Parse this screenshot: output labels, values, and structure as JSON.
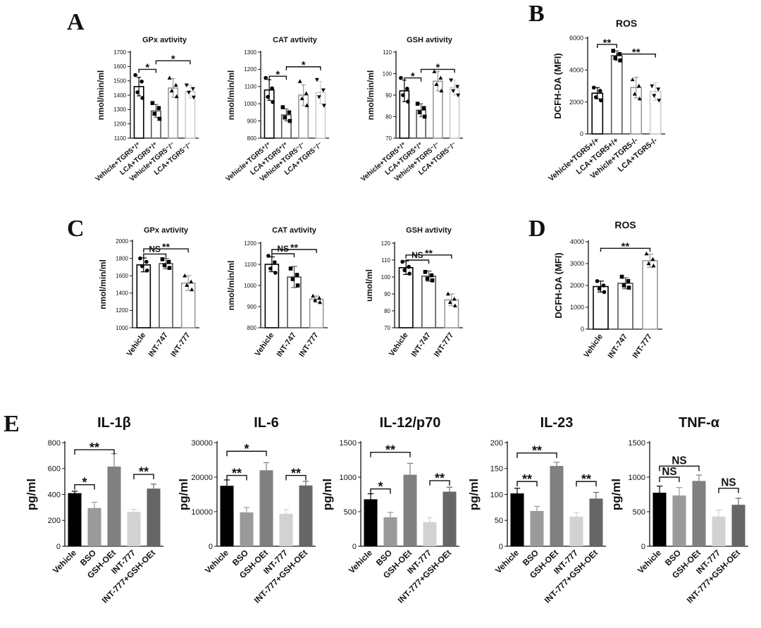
{
  "panels": [
    "A",
    "B",
    "C",
    "D",
    "E"
  ],
  "chart_data": [
    {
      "id": "A1",
      "panel": "A",
      "type": "bar",
      "title": "GPx avtivity",
      "ylabel": "nmol/min/ml",
      "ylim": [
        1100,
        1700
      ],
      "yticks": [
        1100,
        1200,
        1300,
        1400,
        1500,
        1600,
        1700
      ],
      "categories": [
        "Vehicle+TGR5⁺/⁺",
        "LCA+TGR5⁺/⁺",
        "Vehicle+TGR5⁻/⁻",
        "LCA+TGR5⁻/⁻"
      ],
      "values": [
        1460,
        1290,
        1450,
        1425
      ],
      "errors": [
        65,
        45,
        65,
        45
      ],
      "points": [
        [
          1540,
          1495,
          1420,
          1380
        ],
        [
          1345,
          1310,
          1270,
          1235
        ],
        [
          1520,
          1470,
          1430,
          1390
        ],
        [
          1470,
          1445,
          1420,
          1385
        ]
      ],
      "markers": [
        "circle",
        "square",
        "triangle",
        "diamond"
      ],
      "colors": [
        "#000000",
        "#555555",
        "#999999",
        "#cccccc"
      ],
      "significance": [
        {
          "from": 0,
          "to": 1,
          "label": "*",
          "value": 1580
        },
        {
          "from": 1,
          "to": 3,
          "label": "*",
          "value": 1640
        }
      ]
    },
    {
      "id": "A2",
      "panel": "A",
      "type": "bar",
      "title": "CAT avtivity",
      "ylabel": "nmol/min/ml",
      "ylim": [
        800,
        1300
      ],
      "yticks": [
        800,
        900,
        1000,
        1100,
        1200,
        1300
      ],
      "categories": [
        "Vehicle+TGR5⁺/⁺",
        "LCA+TGR5⁺/⁺",
        "Vehicle+TGR5⁻/⁻",
        "LCA+TGR5⁻/⁻"
      ],
      "values": [
        1080,
        935,
        1050,
        1065
      ],
      "errors": [
        60,
        35,
        60,
        65
      ],
      "points": [
        [
          1150,
          1090,
          1040,
          1010
        ],
        [
          980,
          950,
          920,
          900
        ],
        [
          1130,
          1060,
          1030,
          990
        ],
        [
          1140,
          1080,
          1040,
          990
        ]
      ],
      "markers": [
        "circle",
        "square",
        "triangle",
        "diamond"
      ],
      "colors": [
        "#000000",
        "#555555",
        "#999999",
        "#cccccc"
      ],
      "significance": [
        {
          "from": 0,
          "to": 1,
          "label": "*",
          "value": 1160
        },
        {
          "from": 1,
          "to": 3,
          "label": "*",
          "value": 1215
        }
      ]
    },
    {
      "id": "A3",
      "panel": "A",
      "type": "bar",
      "title": "GSH avtivity",
      "ylabel": "nmol/min/ml",
      "ylim": [
        70,
        110
      ],
      "yticks": [
        70,
        80,
        90,
        100,
        110
      ],
      "categories": [
        "Vehicle+TGR5⁺/⁺",
        "LCA+TGR5⁺/⁺",
        "Vehicle+TGR5⁻/⁻",
        "LCA+TGR5⁻/⁻"
      ],
      "values": [
        92,
        83,
        96.5,
        93.5
      ],
      "errors": [
        5,
        3,
        4.5,
        3.5
      ],
      "points": [
        [
          98,
          93,
          90,
          87
        ],
        [
          86,
          84,
          82,
          80
        ],
        [
          101,
          98,
          95,
          92
        ],
        [
          97,
          94,
          92,
          90
        ]
      ],
      "markers": [
        "circle",
        "square",
        "triangle",
        "diamond"
      ],
      "colors": [
        "#000000",
        "#555555",
        "#999999",
        "#cccccc"
      ],
      "significance": [
        {
          "from": 0,
          "to": 1,
          "label": "*",
          "value": 98
        },
        {
          "from": 1,
          "to": 3,
          "label": "*",
          "value": 102
        }
      ]
    },
    {
      "id": "B",
      "panel": "B",
      "type": "bar",
      "title": "ROS",
      "ylabel": "DCFH-DA (MFI)",
      "ylim": [
        0,
        6000
      ],
      "yticks": [
        0,
        2000,
        4000,
        6000
      ],
      "categories": [
        "Vehicle+TGR5+/+",
        "LCA+TGR5+/+",
        "Vehicle+TGR5-/-",
        "LCA+TGR5-/-"
      ],
      "values": [
        2550,
        4900,
        2900,
        2650
      ],
      "errors": [
        350,
        300,
        650,
        550
      ],
      "points": [
        [
          2900,
          2700,
          2300,
          2100
        ],
        [
          5200,
          5000,
          4750,
          4600
        ],
        [
          3400,
          3000,
          2500,
          2200
        ],
        [
          3000,
          2800,
          2400,
          2100
        ]
      ],
      "markers": [
        "circle",
        "square",
        "triangle",
        "diamond"
      ],
      "colors": [
        "#000000",
        "#555555",
        "#999999",
        "#cccccc"
      ],
      "significance": [
        {
          "from": 0,
          "to": 1,
          "label": "**",
          "value": 5600
        },
        {
          "from": 1,
          "to": 3,
          "label": "**",
          "value": 5000
        }
      ]
    },
    {
      "id": "C1",
      "panel": "C",
      "type": "bar",
      "title": "GPx avtivity",
      "ylabel": "nmol/min/ml",
      "ylim": [
        1000,
        2000
      ],
      "yticks": [
        1000,
        1200,
        1400,
        1600,
        1800,
        2000
      ],
      "categories": [
        "Vehicle",
        "INT-747",
        "INT-777"
      ],
      "values": [
        1725,
        1740,
        1515
      ],
      "errors": [
        80,
        60,
        85
      ],
      "points": [
        [
          1800,
          1760,
          1710,
          1660
        ],
        [
          1790,
          1760,
          1720,
          1690
        ],
        [
          1600,
          1530,
          1490,
          1440
        ]
      ],
      "markers": [
        "circle",
        "square",
        "triangle"
      ],
      "colors": [
        "#000000",
        "#555555",
        "#999999"
      ],
      "significance": [
        {
          "from": 0,
          "to": 1,
          "label": "NS",
          "value": 1850
        },
        {
          "from": 0,
          "to": 2,
          "label": "**",
          "value": 1910
        }
      ]
    },
    {
      "id": "C2",
      "panel": "C",
      "type": "bar",
      "title": "CAT avtivity",
      "ylabel": "nmol/min/ml",
      "ylim": [
        800,
        1200
      ],
      "yticks": [
        800,
        900,
        1000,
        1100,
        1200
      ],
      "categories": [
        "Vehicle",
        "INT-747",
        "INT-777"
      ],
      "values": [
        1100,
        1040,
        935
      ],
      "errors": [
        35,
        50,
        15
      ],
      "points": [
        [
          1140,
          1110,
          1080,
          1060
        ],
        [
          1080,
          1050,
          1030,
          1000
        ],
        [
          950,
          940,
          930,
          920
        ]
      ],
      "markers": [
        "circle",
        "square",
        "triangle"
      ],
      "colors": [
        "#000000",
        "#555555",
        "#999999"
      ],
      "significance": [
        {
          "from": 0,
          "to": 1,
          "label": "NS",
          "value": 1150
        },
        {
          "from": 0,
          "to": 2,
          "label": "**",
          "value": 1170
        }
      ]
    },
    {
      "id": "C3",
      "panel": "C",
      "type": "bar",
      "title": "GSH avtivity",
      "ylabel": "umol/ml",
      "ylim": [
        70,
        120
      ],
      "yticks": [
        70,
        80,
        90,
        100,
        110,
        120
      ],
      "categories": [
        "Vehicle",
        "INT-747",
        "INT-777"
      ],
      "values": [
        105.5,
        100.5,
        86.5
      ],
      "errors": [
        4,
        3,
        3.5
      ],
      "points": [
        [
          109,
          106,
          104,
          102
        ],
        [
          103,
          101,
          99,
          98
        ],
        [
          90,
          87,
          85,
          83
        ]
      ],
      "markers": [
        "circle",
        "square",
        "triangle"
      ],
      "colors": [
        "#000000",
        "#555555",
        "#999999"
      ],
      "significance": [
        {
          "from": 0,
          "to": 1,
          "label": "NS",
          "value": 110
        },
        {
          "from": 0,
          "to": 2,
          "label": "**",
          "value": 113
        }
      ]
    },
    {
      "id": "D",
      "panel": "D",
      "type": "bar",
      "title": "ROS",
      "ylabel": "DCFH-DA (MFI)",
      "ylim": [
        0,
        4000
      ],
      "yticks": [
        0,
        1000,
        2000,
        3000,
        4000
      ],
      "categories": [
        "Vehicle",
        "INT-747",
        "INT-777"
      ],
      "values": [
        1950,
        2100,
        3130
      ],
      "errors": [
        250,
        250,
        300
      ],
      "points": [
        [
          2200,
          2000,
          1850,
          1700
        ],
        [
          2400,
          2200,
          2000,
          1900
        ],
        [
          3450,
          3200,
          3000,
          2900
        ]
      ],
      "markers": [
        "circle",
        "square",
        "triangle"
      ],
      "colors": [
        "#000000",
        "#555555",
        "#999999"
      ],
      "significance": [
        {
          "from": 0,
          "to": 2,
          "label": "**",
          "value": 3700
        }
      ]
    },
    {
      "id": "E1",
      "panel": "E",
      "type": "bar",
      "title": "IL-1β",
      "ylabel": "pg/ml",
      "ylim": [
        0,
        800
      ],
      "yticks": [
        0,
        200,
        400,
        600,
        800
      ],
      "categories": [
        "Vehicle",
        "BSO",
        "GSH-OEt",
        "INT-777",
        "INT-777+GSH-OEt"
      ],
      "values": [
        410,
        295,
        615,
        265,
        445
      ],
      "errors": [
        15,
        45,
        100,
        20,
        35
      ],
      "colors": [
        "#000000",
        "#9a9a9a",
        "#808080",
        "#d2d2d2",
        "#666666"
      ],
      "significance": [
        {
          "from": 0,
          "to": 1,
          "label": "*",
          "value": 475
        },
        {
          "from": 0,
          "to": 2,
          "label": "**",
          "value": 745
        },
        {
          "from": 3,
          "to": 4,
          "label": "**",
          "value": 555
        }
      ]
    },
    {
      "id": "E2",
      "panel": "E",
      "type": "bar",
      "title": "IL-6",
      "ylabel": "pg/ml",
      "ylim": [
        0,
        30000
      ],
      "yticks": [
        0,
        10000,
        20000,
        30000
      ],
      "categories": [
        "Vehicle",
        "BSO",
        "GSH-OEt",
        "INT-777",
        "INT-777+GSH-OEt"
      ],
      "values": [
        17500,
        9800,
        22000,
        9400,
        17600
      ],
      "errors": [
        1700,
        1400,
        2200,
        1200,
        1200
      ],
      "colors": [
        "#000000",
        "#9a9a9a",
        "#808080",
        "#d2d2d2",
        "#666666"
      ],
      "significance": [
        {
          "from": 0,
          "to": 1,
          "label": "**",
          "value": 20500
        },
        {
          "from": 0,
          "to": 2,
          "label": "*",
          "value": 27500
        },
        {
          "from": 3,
          "to": 4,
          "label": "**",
          "value": 20500
        }
      ]
    },
    {
      "id": "E3",
      "panel": "E",
      "type": "bar",
      "title": "IL-12/p70",
      "ylabel": "pg/ml",
      "ylim": [
        0,
        1500
      ],
      "yticks": [
        0,
        500,
        1000,
        1500
      ],
      "categories": [
        "Vehicle",
        "BSO",
        "GSH-OEt",
        "INT-777",
        "INT-777+GSH-OEt"
      ],
      "values": [
        680,
        420,
        1035,
        350,
        790
      ],
      "errors": [
        80,
        70,
        165,
        65,
        65
      ],
      "colors": [
        "#000000",
        "#9a9a9a",
        "#808080",
        "#d2d2d2",
        "#666666"
      ],
      "significance": [
        {
          "from": 0,
          "to": 1,
          "label": "*",
          "value": 830
        },
        {
          "from": 0,
          "to": 2,
          "label": "**",
          "value": 1360
        },
        {
          "from": 3,
          "to": 4,
          "label": "**",
          "value": 950
        }
      ]
    },
    {
      "id": "E4",
      "panel": "E",
      "type": "bar",
      "title": "IL-23",
      "ylabel": "pg/ml",
      "ylim": [
        0,
        200
      ],
      "yticks": [
        0,
        50,
        100,
        150,
        200
      ],
      "categories": [
        "Vehicle",
        "BSO",
        "GSH-OEt",
        "INT-777",
        "INT-777+GSH-OEt"
      ],
      "values": [
        102,
        68,
        155,
        57,
        92
      ],
      "errors": [
        10,
        9,
        7,
        8,
        12
      ],
      "colors": [
        "#000000",
        "#9a9a9a",
        "#808080",
        "#d2d2d2",
        "#666666"
      ],
      "significance": [
        {
          "from": 0,
          "to": 1,
          "label": "**",
          "value": 125
        },
        {
          "from": 0,
          "to": 2,
          "label": "**",
          "value": 180
        },
        {
          "from": 3,
          "to": 4,
          "label": "**",
          "value": 125
        }
      ]
    },
    {
      "id": "E5",
      "panel": "E",
      "type": "bar",
      "title": "TNF-α",
      "ylabel": "pg/ml",
      "ylim": [
        0,
        1500
      ],
      "yticks": [
        0,
        500,
        1000,
        1500
      ],
      "categories": [
        "Vehicle",
        "BSO",
        "GSH-OEt",
        "INT-777",
        "INT-777+GSH-OEt"
      ],
      "values": [
        775,
        735,
        945,
        430,
        600
      ],
      "errors": [
        95,
        115,
        85,
        95,
        95
      ],
      "colors": [
        "#000000",
        "#9a9a9a",
        "#808080",
        "#d2d2d2",
        "#666666"
      ],
      "significance": [
        {
          "from": 0,
          "to": 1,
          "label": "NS",
          "value": 1000
        },
        {
          "from": 0,
          "to": 2,
          "label": "NS",
          "value": 1160
        },
        {
          "from": 3,
          "to": 4,
          "label": "NS",
          "value": 840
        }
      ]
    }
  ]
}
